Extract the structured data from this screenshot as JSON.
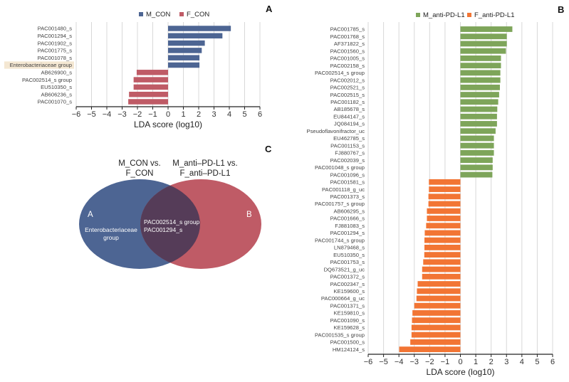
{
  "panels": {
    "a": "A",
    "b": "B",
    "c": "C"
  },
  "colors": {
    "m_con": "#4d6593",
    "f_con": "#bf5b66",
    "m_pd": "#7ea55a",
    "f_pd": "#f27534",
    "highlight": "#f4e7d2",
    "intersection": "#553c58"
  },
  "chart_data": [
    {
      "type": "bar",
      "orientation": "horizontal",
      "xlabel": "LDA score (log10)",
      "xlim": [
        -6,
        6
      ],
      "xticks": [
        "−6",
        "−5",
        "−4",
        "−3",
        "−2",
        "−1",
        "0",
        "1",
        "2",
        "3",
        "4",
        "5",
        "6"
      ],
      "grid": true,
      "legend": [
        {
          "name": "M_CON",
          "color": "#4d6593"
        },
        {
          "name": "F_CON",
          "color": "#bf5b66"
        }
      ],
      "legend_placement": "top",
      "highlighted": "Enterobacteriaceae group",
      "categories": [
        "PAC001480_s",
        "PAC001294_s",
        "PAC001902_s",
        "PAC001775_s",
        "PAC001078_s",
        "Enterobacteriaceae group",
        "AB626900_s",
        "PAC002514_s group",
        "EU510350_s",
        "AB606236_s",
        "PAC001070_s"
      ],
      "values": [
        4.1,
        3.55,
        2.4,
        2.2,
        2.05,
        2.05,
        -2.05,
        -2.25,
        -2.25,
        -2.55,
        -2.6
      ]
    },
    {
      "type": "bar",
      "orientation": "horizontal",
      "xlabel": "LDA score (log10)",
      "xlim": [
        -6,
        6
      ],
      "xticks": [
        "−6",
        "−5",
        "−4",
        "−3",
        "−2",
        "−1",
        "0",
        "1",
        "2",
        "3",
        "4",
        "5",
        "6"
      ],
      "grid": true,
      "legend": [
        {
          "name": "M_anti-PD-L1",
          "color": "#7ea55a"
        },
        {
          "name": "F_anti-PD-L1",
          "color": "#f27534"
        }
      ],
      "legend_placement": "top",
      "categories": [
        "PAC001785_s",
        "PAC001768_s",
        "AF371822_s",
        "PAC001560_s",
        "PAC001005_s",
        "PAC002158_s",
        "PAC002514_s group",
        "PAC002012_s",
        "PAC002521_s",
        "PAC002515_s",
        "PAC001182_s",
        "AB185678_s",
        "EU844147_s",
        "JQ084194_s",
        "Pseudoflavonifractor_uc",
        "EU462785_s",
        "PAC001153_s",
        "FJ880767_s",
        "PAC002039_s",
        "PAC001048_s group",
        "PAC001096_s",
        "PAC001581_s",
        "PAC001118_g_uc",
        "PAC001373_s",
        "PAC001757_s group",
        "AB606295_s",
        "PAC001666_s",
        "FJ881083_s",
        "PAC001294_s",
        "PAC001744_s group",
        "LN879468_s",
        "EU510350_s",
        "PAC001753_s",
        "DQ673521_g_uc",
        "PAC001372_s",
        "PAC002347_s",
        "KE159600_s",
        "PAC000664_g_uc",
        "PAC001371_s",
        "KE159810_s",
        "PAC001090_s",
        "KE159628_s",
        "PAC001535_s group",
        "PAC001500_s",
        "HM124124_s"
      ],
      "values": [
        3.38,
        3.02,
        3.02,
        2.96,
        2.64,
        2.64,
        2.6,
        2.6,
        2.57,
        2.52,
        2.46,
        2.4,
        2.38,
        2.38,
        2.29,
        2.18,
        2.18,
        2.18,
        2.1,
        2.1,
        2.08,
        -2.05,
        -2.05,
        -2.08,
        -2.08,
        -2.18,
        -2.18,
        -2.23,
        -2.32,
        -2.34,
        -2.34,
        -2.35,
        -2.42,
        -2.49,
        -2.49,
        -2.78,
        -2.83,
        -2.86,
        -3.0,
        -3.12,
        -3.15,
        -3.18,
        -3.18,
        -3.26,
        -3.98
      ]
    }
  ],
  "venn": {
    "left_title": [
      "M_CON vs.",
      "F_CON"
    ],
    "right_title": [
      "M_anti–PD-L1 vs.",
      "F_anti–PD-L1"
    ],
    "left_label": "A",
    "right_label": "B",
    "left_only": [
      "Enterobacteriaceae",
      "group"
    ],
    "shared": [
      "PAC002514_s group",
      "PAC001294_s"
    ]
  }
}
